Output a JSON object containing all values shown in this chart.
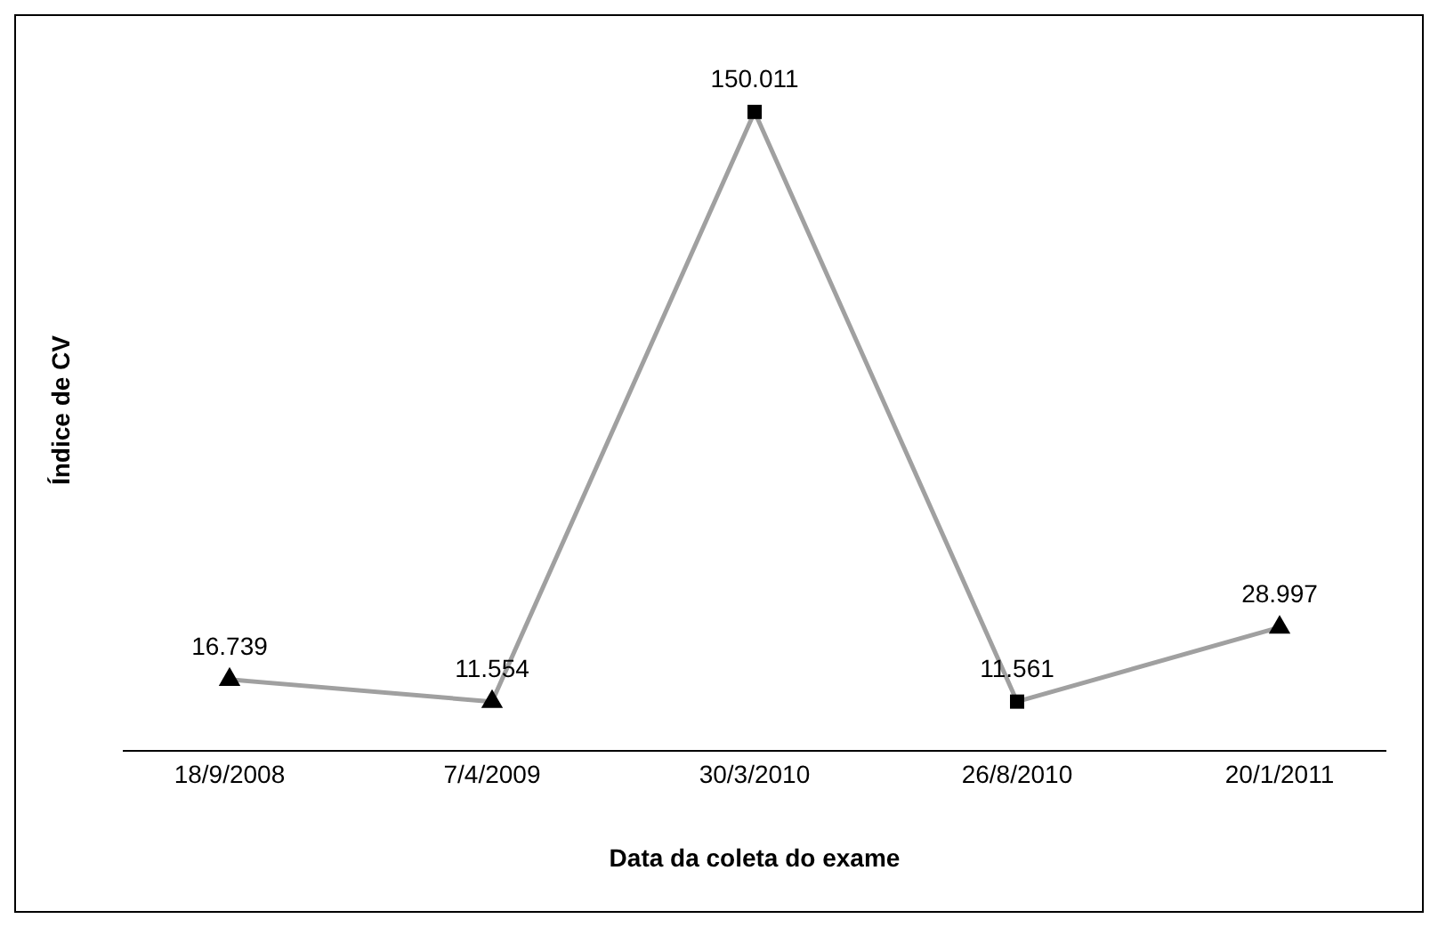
{
  "chart_data": {
    "type": "line",
    "xlabel": "Data da coleta do exame",
    "ylabel": "Índice de CV",
    "categories": [
      "18/9/2008",
      "7/4/2009",
      "30/3/2010",
      "26/8/2010",
      "20/1/2011"
    ],
    "series": [
      {
        "color": "#a0a0a0",
        "marker": "none",
        "values": [
          16.739,
          11.554,
          150.011,
          11.561,
          28.997
        ]
      },
      {
        "type": "scatter",
        "color": "#000000",
        "marker": "triangle",
        "values": [
          16.739,
          11.554,
          null,
          null,
          28.997
        ],
        "value_labels": [
          null,
          null,
          null,
          null,
          null
        ]
      },
      {
        "type": "scatter",
        "color": "#000000",
        "marker": "square",
        "values": [
          null,
          null,
          150.011,
          11.561,
          null
        ],
        "value_labels": [
          null,
          null,
          null,
          null,
          null
        ]
      }
    ],
    "tick_labels": "x",
    "data_labels": true
  }
}
